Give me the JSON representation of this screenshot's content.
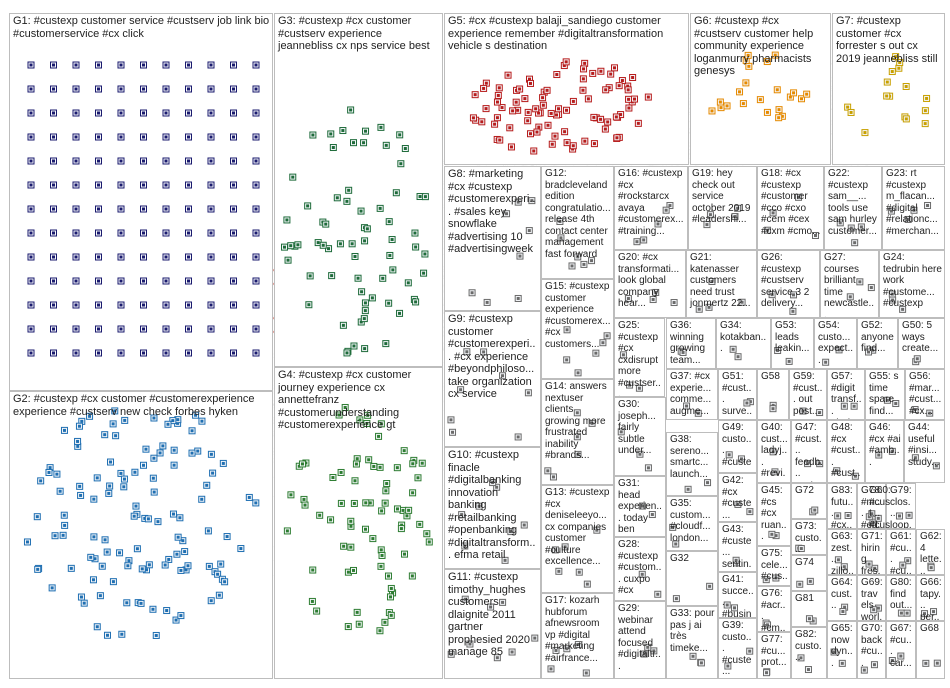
{
  "groups": [
    {
      "id": "G1",
      "label": "G1: #custexp customer service #custserv job link bio #customerservice #cx click",
      "color": "#1a1a6e"
    },
    {
      "id": "G2",
      "label": "G2: #custexp #cx customer #customerexperience experience #custserv new check forbes hyken",
      "color": "#1f6fb2"
    },
    {
      "id": "G3",
      "label": "G3: #custexp #cx customer #custserv experience jeannebliss cx nps service best",
      "color": "#1e6b3a"
    },
    {
      "id": "G4",
      "label": "G4: #custexp #cx customer journey experience cx annettefranz #customerunderstanding #customerexperience gt",
      "color": "#2e7d32"
    },
    {
      "id": "G5",
      "label": "G5: #cx #custexp balaji_sandiego customer experience remember #digitaltransformation vehicle s destination",
      "color": "#b71c1c"
    },
    {
      "id": "G6",
      "label": "G6: #custexp #cx #custserv customer help community experience loganmurry pharmacists genesys",
      "color": "#e68a00"
    },
    {
      "id": "G7",
      "label": "G7: #custexp customer #cx forrester s out cx 2019 jeannebliss still",
      "color": "#c8a000"
    },
    {
      "id": "G8",
      "label": "G8: #marketing #cx #custexp #customerexperi... #sales key snowflake #advertising 10 #advertisingweek",
      "color": "#444444"
    },
    {
      "id": "G9",
      "label": "G9: #custexp customer #customerexperi... #cx experience #beyondphiloso... take organization cx service",
      "color": "#444444"
    },
    {
      "id": "G10",
      "label": "G10: #custexp finacle #digitalbanking innovation banking #retailbanking #openbanking #digitaltransform... efma retail",
      "color": "#444444"
    },
    {
      "id": "G11",
      "label": "G11: #custexp timothy_hughes customers dlaignite 2011 gartner prophesied 2020 manage 85",
      "color": "#444444"
    },
    {
      "id": "G12",
      "label": "G12: bradcleveland edition congratulatio... release 4th contact center management fast forward",
      "color": "#444444"
    },
    {
      "id": "G13",
      "label": "G13: #custexp #cx deniseleeyo... cx companies customer #culture excellence...",
      "color": "#444444"
    },
    {
      "id": "G14",
      "label": "G14: answers nextuser clients growing more frustrated inability #brands...",
      "color": "#444444"
    },
    {
      "id": "G15",
      "label": "G15: #custexp customer experience #customerex... #cx customers...",
      "color": "#444444"
    },
    {
      "id": "G16",
      "label": "G16: #custexp #cx #rockstarcx avaya #customerex... #training...",
      "color": "#444444"
    },
    {
      "id": "G17",
      "label": "G17: kozarh hubforum afnewsroom vp #digital #marketing #airfrance...",
      "color": "#444444"
    },
    {
      "id": "G18",
      "label": "G18: #cx #custexp #customer #cco #cxo #cem #cex #cxm #cmo...",
      "color": "#444444"
    },
    {
      "id": "G19",
      "label": "G19: hey check out service october 2019 #leadershi...",
      "color": "#444444"
    },
    {
      "id": "G20",
      "label": "G20: #cx transformati... look global company hear...",
      "color": "#444444"
    },
    {
      "id": "G21",
      "label": "G21: katenasser customers need trust jonmertz 22...",
      "color": "#444444"
    },
    {
      "id": "G22",
      "label": "G22: #custexp sam__... tools use sam hurley customer...",
      "color": "#444444"
    },
    {
      "id": "G23",
      "label": "G23: rt #custexp m_flacan... #digital #relationc... #merchan...",
      "color": "#444444"
    },
    {
      "id": "G24",
      "label": "G24: tedrubin here work #custome... #custexp",
      "color": "#444444"
    },
    {
      "id": "G25",
      "label": "G25: #custexp #cx cxdisrupt more #custser...",
      "color": "#444444"
    },
    {
      "id": "G26",
      "label": "G26: #custexp #custserv service 3 2 delivery...",
      "color": "#444444"
    },
    {
      "id": "G27",
      "label": "G27: courses brilliant time newcastle...",
      "color": "#444444"
    },
    {
      "id": "G28",
      "label": "G28: #custexp #custom... cuxpo #cx",
      "color": "#444444"
    },
    {
      "id": "G29",
      "label": "G29: webinar attend focused #digitaltr...",
      "color": "#444444"
    },
    {
      "id": "G30",
      "label": "G30: joseph... fairly subtle under...",
      "color": "#444444"
    },
    {
      "id": "G31",
      "label": "G31: head experien... today ben llewellyn...",
      "color": "#444444"
    },
    {
      "id": "G32",
      "label": "G32",
      "color": "#444444"
    },
    {
      "id": "G33",
      "label": "G33: pour pas j ai très timeke...",
      "color": "#444444"
    },
    {
      "id": "G34",
      "label": "G34: kotakban...",
      "color": "#444444"
    },
    {
      "id": "G35",
      "label": "G35: custom... #cloudf... london...",
      "color": "#444444"
    },
    {
      "id": "G36",
      "label": "G36: winning growing team...",
      "color": "#444444"
    },
    {
      "id": "G37",
      "label": "G37: #cx experie... comme... augme...",
      "color": "#444444"
    },
    {
      "id": "G38",
      "label": "G38: sereno... smartc... launch...",
      "color": "#444444"
    },
    {
      "id": "G39",
      "label": "G39: custo... #custe...",
      "color": "#444444"
    },
    {
      "id": "G40",
      "label": "G40: cust... ladyj... #revi...",
      "color": "#444444"
    },
    {
      "id": "G41",
      "label": "G41: succe... #busin...",
      "color": "#444444"
    },
    {
      "id": "G42",
      "label": "G42: #cx #custe...",
      "color": "#444444"
    },
    {
      "id": "G43",
      "label": "G43: #custe... sentin...",
      "color": "#444444"
    },
    {
      "id": "G44",
      "label": "G44: useful #insi... study...",
      "color": "#444444"
    },
    {
      "id": "G45",
      "label": "G45: #cs #cx ruan...",
      "color": "#444444"
    },
    {
      "id": "G46",
      "label": "G46: #cx #ai #amb...",
      "color": "#444444"
    },
    {
      "id": "G47",
      "label": "G47: #cust... feedb... custo...",
      "color": "#444444"
    },
    {
      "id": "G48",
      "label": "G48: #cx #cust... #cust...",
      "color": "#444444"
    },
    {
      "id": "G49",
      "label": "G49: custo... #custe...",
      "color": "#444444"
    },
    {
      "id": "G50",
      "label": "G50: 5 ways create...",
      "color": "#444444"
    },
    {
      "id": "G51",
      "label": "G51: #cust... surve...",
      "color": "#444444"
    },
    {
      "id": "G52",
      "label": "G52: anyone find...",
      "color": "#444444"
    },
    {
      "id": "G53",
      "label": "G53: leads leakin...",
      "color": "#444444"
    },
    {
      "id": "G54",
      "label": "G54: custo... expect...",
      "color": "#444444"
    },
    {
      "id": "G55",
      "label": "G55: s time spare find...",
      "color": "#444444"
    },
    {
      "id": "G56",
      "label": "G56: #mar... #cust... #cx...",
      "color": "#444444"
    },
    {
      "id": "G57",
      "label": "G57: #digit transf... strate...",
      "color": "#444444"
    },
    {
      "id": "G58",
      "label": "G58",
      "color": "#444444"
    },
    {
      "id": "G59",
      "label": "G59: #cust... out post...",
      "color": "#444444"
    },
    {
      "id": "G60",
      "label": "G60: #cust... #cust...",
      "color": "#444444"
    },
    {
      "id": "G61",
      "label": "G61: #cu... #cu...",
      "color": "#444444"
    },
    {
      "id": "G62",
      "label": "G62: 4 lette...",
      "color": "#444444"
    },
    {
      "id": "G63",
      "label": "G63: zest... zillo...",
      "color": "#444444"
    },
    {
      "id": "G64",
      "label": "G64: cust...",
      "color": "#444444"
    },
    {
      "id": "G65",
      "label": "G65: now dyn...",
      "color": "#444444"
    },
    {
      "id": "G66",
      "label": "G66: tapy... per...",
      "color": "#444444"
    },
    {
      "id": "G67",
      "label": "G67: #cu... car...",
      "color": "#444444"
    },
    {
      "id": "G68",
      "label": "G68",
      "color": "#444444"
    },
    {
      "id": "G69",
      "label": "G69: travels worl...",
      "color": "#444444"
    },
    {
      "id": "G70",
      "label": "G70: back #cu...",
      "color": "#444444"
    },
    {
      "id": "G71",
      "label": "G71: hiring fres...",
      "color": "#444444"
    },
    {
      "id": "G72",
      "label": "G72",
      "color": "#444444"
    },
    {
      "id": "G73",
      "label": "G73: custo...",
      "color": "#444444"
    },
    {
      "id": "G74",
      "label": "G74",
      "color": "#444444"
    },
    {
      "id": "G75",
      "label": "G75: cele... #cus...",
      "color": "#444444"
    },
    {
      "id": "G76",
      "label": "G76: #acr... #cm...",
      "color": "#444444"
    },
    {
      "id": "G77",
      "label": "G77: #cu... prot...",
      "color": "#444444"
    },
    {
      "id": "G78",
      "label": "G78: #m... #ed...",
      "color": "#444444"
    },
    {
      "id": "G79",
      "label": "G79: clos... loop...",
      "color": "#444444"
    },
    {
      "id": "G80",
      "label": "G80: find out...",
      "color": "#444444"
    },
    {
      "id": "G81",
      "label": "G81",
      "color": "#444444"
    },
    {
      "id": "G82",
      "label": "G82: custo...",
      "color": "#444444"
    },
    {
      "id": "G83",
      "label": "G83: futu... #cx...",
      "color": "#444444"
    }
  ]
}
